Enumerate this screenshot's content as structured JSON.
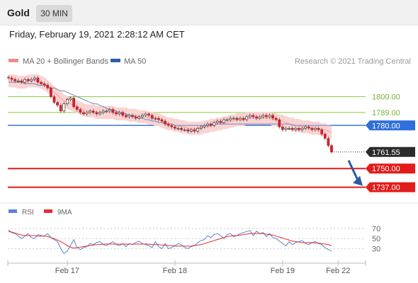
{
  "header": {
    "instrument": "Gold",
    "timeframe": "30 MIN"
  },
  "timestamp": "Friday, February 19, 2021 2:28:12 AM CET",
  "legend": {
    "bollinger": {
      "label": "MA 20 + Bollinger Bands",
      "color": "#f28b8b"
    },
    "ma50": {
      "label": "MA 50",
      "color": "#2f5f9f"
    },
    "copyright": "Research © 2021 Trading Central"
  },
  "chart_data": {
    "type": "line",
    "ylim": [
      1727,
      1818
    ],
    "price_levels": [
      {
        "label": "1800.00",
        "value": 1800.0,
        "style": "green"
      },
      {
        "label": "1789.00",
        "value": 1789.0,
        "style": "green"
      },
      {
        "label": "1780.00",
        "value": 1780.0,
        "style": "blue"
      },
      {
        "label": "1761.55",
        "value": 1761.55,
        "style": "current"
      },
      {
        "label": "1750.00",
        "value": 1750.0,
        "style": "red"
      },
      {
        "label": "1737.00",
        "value": 1737.0,
        "style": "red"
      }
    ],
    "x_ticks": [
      "Feb 17",
      "Feb 18",
      "Feb 19",
      "Feb 22"
    ],
    "x_tick_index": [
      18,
      51,
      84,
      101
    ],
    "n_candles": 100,
    "close": [
      1813,
      1812,
      1811,
      1811,
      1810,
      1812,
      1811,
      1812,
      1813,
      1810,
      1809,
      1808,
      1806,
      1800,
      1796,
      1794,
      1790,
      1795,
      1798,
      1799,
      1793,
      1791,
      1789,
      1788,
      1789,
      1790,
      1789,
      1788,
      1789,
      1790,
      1790,
      1791,
      1789,
      1788,
      1789,
      1787,
      1786,
      1787,
      1786,
      1785,
      1786,
      1787,
      1788,
      1787,
      1785,
      1785,
      1784,
      1783,
      1781,
      1780,
      1779,
      1778,
      1778,
      1777,
      1777,
      1776,
      1777,
      1776,
      1778,
      1779,
      1780,
      1781,
      1780,
      1782,
      1783,
      1782,
      1784,
      1784,
      1785,
      1785,
      1784,
      1785,
      1784,
      1786,
      1787,
      1786,
      1785,
      1786,
      1787,
      1786,
      1787,
      1785,
      1784,
      1779,
      1777,
      1778,
      1778,
      1777,
      1778,
      1777,
      1778,
      1779,
      1778,
      1777,
      1778,
      1777,
      1774,
      1771,
      1766,
      1761.55
    ],
    "ma20": [
      1811,
      1811,
      1811,
      1810,
      1810,
      1810,
      1811,
      1811,
      1811,
      1811,
      1810,
      1809,
      1807,
      1805,
      1803,
      1801,
      1799,
      1797,
      1796,
      1795,
      1794,
      1793,
      1792,
      1791,
      1790,
      1790,
      1790,
      1789,
      1789,
      1789,
      1789,
      1789,
      1789,
      1788,
      1788,
      1788,
      1788,
      1787,
      1787,
      1787,
      1786,
      1786,
      1786,
      1785,
      1785,
      1784,
      1784,
      1783,
      1782,
      1781,
      1781,
      1780,
      1780,
      1779,
      1779,
      1778,
      1778,
      1778,
      1778,
      1778,
      1779,
      1779,
      1780,
      1780,
      1781,
      1781,
      1782,
      1782,
      1783,
      1783,
      1784,
      1784,
      1784,
      1785,
      1785,
      1785,
      1785,
      1785,
      1785,
      1785,
      1785,
      1784,
      1784,
      1783,
      1783,
      1782,
      1781,
      1781,
      1780,
      1780,
      1779,
      1779,
      1779,
      1778,
      1778,
      1778,
      1777,
      1777,
      1776,
      1775
    ],
    "band_width": 4.5,
    "ma50": [
      1810,
      1810,
      1810,
      1810,
      1810,
      1809,
      1809,
      1809,
      1809,
      1808,
      1808,
      1808,
      1807,
      1806,
      1806,
      1805,
      1804,
      1804,
      1803,
      1802,
      1801,
      1800,
      1799,
      1798,
      1797,
      1796,
      1795,
      1795,
      1794,
      1793,
      1792,
      1791,
      1791,
      1790,
      1789,
      1789,
      1788,
      1787,
      1787,
      1786,
      1785,
      1785,
      1784,
      1784,
      1783,
      1783,
      1782,
      1782,
      1781,
      1781,
      1781,
      1780,
      1780,
      1780,
      1780,
      1780,
      1780,
      1780,
      1780,
      1780,
      1780,
      1780,
      1780,
      1781,
      1781,
      1781,
      1781,
      1781,
      1781,
      1781,
      1781,
      1781,
      1781,
      1781,
      1781,
      1781,
      1781,
      1781,
      1781,
      1781,
      1781,
      1781,
      1781,
      1781,
      1781,
      1781,
      1781,
      1780,
      1780,
      1780,
      1780,
      1780,
      1780,
      1780,
      1780,
      1780,
      1780,
      1780,
      1780,
      1780
    ],
    "rsi": {
      "legend": {
        "rsi_label": "RSI",
        "ma_label": "9MA",
        "rsi_color": "#5b83d1",
        "ma_color": "#e03030"
      },
      "ticks": [
        70,
        50,
        30
      ],
      "ylim": [
        15,
        80
      ],
      "values": [
        67,
        62,
        60,
        55,
        50,
        55,
        60,
        52,
        50,
        58,
        56,
        55,
        60,
        52,
        48,
        44,
        30,
        20,
        25,
        36,
        48,
        32,
        28,
        32,
        34,
        40,
        38,
        42,
        44,
        38,
        36,
        40,
        44,
        38,
        36,
        40,
        34,
        40,
        38,
        42,
        45,
        40,
        38,
        36,
        32,
        44,
        34,
        30,
        40,
        30,
        32,
        36,
        40,
        38,
        32,
        30,
        34,
        36,
        42,
        46,
        48,
        56,
        52,
        58,
        60,
        56,
        50,
        58,
        60,
        54,
        56,
        60,
        62,
        64,
        66,
        56,
        65,
        60,
        62,
        54,
        60,
        52,
        50,
        45,
        40,
        35,
        44,
        38,
        42,
        44,
        46,
        40,
        38,
        42,
        44,
        40,
        38,
        32,
        28,
        25
      ],
      "ma9": [
        64,
        63,
        61,
        59,
        57,
        56,
        56,
        56,
        56,
        55,
        55,
        55,
        54,
        52,
        50,
        47,
        44,
        40,
        36,
        33,
        31,
        32,
        33,
        34,
        35,
        36,
        37,
        38,
        38,
        39,
        39,
        39,
        39,
        39,
        39,
        39,
        39,
        39,
        39,
        39,
        39,
        39,
        39,
        39,
        38,
        38,
        38,
        37,
        37,
        36,
        36,
        35,
        35,
        35,
        35,
        35,
        35,
        36,
        37,
        38,
        40,
        42,
        44,
        46,
        48,
        50,
        52,
        54,
        55,
        56,
        56,
        57,
        58,
        59,
        60,
        60,
        60,
        60,
        60,
        59,
        58,
        57,
        55,
        53,
        51,
        49,
        47,
        45,
        44,
        43,
        42,
        42,
        42,
        42,
        41,
        41,
        40,
        39,
        38,
        36
      ]
    }
  }
}
